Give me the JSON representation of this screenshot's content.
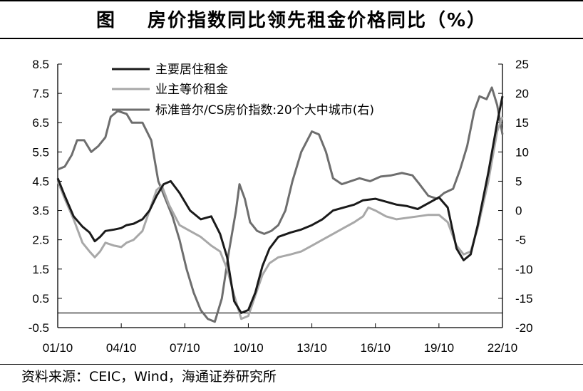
{
  "title": {
    "label": "图",
    "text": "房价指数同比领先租金价格同比（%）"
  },
  "source": "资料来源：CEIC，Wind，海通证券研究所",
  "chart_data": {
    "type": "line",
    "x_ticks": [
      "01/10",
      "04/10",
      "07/10",
      "10/10",
      "13/10",
      "16/10",
      "19/10",
      "22/10"
    ],
    "y_left": {
      "ticks": [
        "8.5",
        "7.5",
        "6.5",
        "5.5",
        "4.5",
        "3.5",
        "2.5",
        "1.5",
        "0.5",
        "-0.5"
      ],
      "range": [
        -0.5,
        8.5
      ]
    },
    "y_right": {
      "ticks": [
        "25",
        "20",
        "15",
        "10",
        "5",
        "0",
        "-5",
        "-10",
        "-15",
        "-20"
      ],
      "range": [
        -20,
        25
      ]
    },
    "legend_position": "top-center",
    "series": [
      {
        "name": "主要居住租金",
        "axis": "left",
        "color": "#1a1a1a",
        "points": [
          [
            "2001-10",
            4.6
          ],
          [
            "2002-02",
            4.0
          ],
          [
            "2002-07",
            3.3
          ],
          [
            "2002-12",
            2.95
          ],
          [
            "2003-04",
            2.75
          ],
          [
            "2003-07",
            2.45
          ],
          [
            "2003-10",
            2.6
          ],
          [
            "2004-01",
            2.8
          ],
          [
            "2004-06",
            2.85
          ],
          [
            "2004-10",
            2.9
          ],
          [
            "2005-01",
            3.0
          ],
          [
            "2005-05",
            3.05
          ],
          [
            "2005-10",
            3.2
          ],
          [
            "2006-02",
            3.5
          ],
          [
            "2006-06",
            4.0
          ],
          [
            "2006-10",
            4.4
          ],
          [
            "2007-02",
            4.5
          ],
          [
            "2007-07",
            4.1
          ],
          [
            "2008-01",
            3.5
          ],
          [
            "2008-07",
            3.2
          ],
          [
            "2009-01",
            3.3
          ],
          [
            "2009-06",
            2.7
          ],
          [
            "2009-10",
            1.9
          ],
          [
            "2010-02",
            0.4
          ],
          [
            "2010-06",
            0.0
          ],
          [
            "2010-10",
            0.1
          ],
          [
            "2011-02",
            0.7
          ],
          [
            "2011-06",
            1.6
          ],
          [
            "2011-10",
            2.2
          ],
          [
            "2012-03",
            2.6
          ],
          [
            "2012-10",
            2.75
          ],
          [
            "2013-04",
            2.85
          ],
          [
            "2013-10",
            3.0
          ],
          [
            "2014-04",
            3.2
          ],
          [
            "2014-10",
            3.5
          ],
          [
            "2015-04",
            3.6
          ],
          [
            "2015-10",
            3.7
          ],
          [
            "2016-03",
            3.85
          ],
          [
            "2016-10",
            3.9
          ],
          [
            "2017-04",
            3.8
          ],
          [
            "2017-10",
            3.7
          ],
          [
            "2018-04",
            3.65
          ],
          [
            "2018-10",
            3.55
          ],
          [
            "2019-04",
            3.75
          ],
          [
            "2019-10",
            3.95
          ],
          [
            "2020-03",
            3.6
          ],
          [
            "2020-08",
            2.2
          ],
          [
            "2020-12",
            1.8
          ],
          [
            "2021-04",
            2.0
          ],
          [
            "2021-08",
            3.0
          ],
          [
            "2022-02",
            4.8
          ],
          [
            "2022-07",
            6.5
          ],
          [
            "2022-10",
            7.4
          ]
        ]
      },
      {
        "name": "业主等价租金",
        "axis": "left",
        "color": "#a8a8a8",
        "points": [
          [
            "2001-10",
            4.5
          ],
          [
            "2002-02",
            3.9
          ],
          [
            "2002-07",
            3.2
          ],
          [
            "2002-12",
            2.4
          ],
          [
            "2003-04",
            2.1
          ],
          [
            "2003-07",
            1.9
          ],
          [
            "2003-10",
            2.1
          ],
          [
            "2004-01",
            2.4
          ],
          [
            "2004-06",
            2.3
          ],
          [
            "2004-10",
            2.25
          ],
          [
            "2005-01",
            2.4
          ],
          [
            "2005-05",
            2.5
          ],
          [
            "2005-10",
            2.8
          ],
          [
            "2006-02",
            3.5
          ],
          [
            "2006-06",
            4.2
          ],
          [
            "2006-09",
            4.35
          ],
          [
            "2007-01",
            3.7
          ],
          [
            "2007-07",
            3.0
          ],
          [
            "2008-01",
            2.8
          ],
          [
            "2008-07",
            2.6
          ],
          [
            "2009-01",
            2.3
          ],
          [
            "2009-06",
            2.1
          ],
          [
            "2009-10",
            1.5
          ],
          [
            "2010-02",
            0.6
          ],
          [
            "2010-06",
            -0.2
          ],
          [
            "2010-10",
            -0.1
          ],
          [
            "2011-02",
            0.6
          ],
          [
            "2011-06",
            1.3
          ],
          [
            "2011-10",
            1.7
          ],
          [
            "2012-03",
            1.9
          ],
          [
            "2012-10",
            2.0
          ],
          [
            "2013-04",
            2.1
          ],
          [
            "2013-10",
            2.3
          ],
          [
            "2014-04",
            2.5
          ],
          [
            "2014-10",
            2.7
          ],
          [
            "2015-04",
            2.9
          ],
          [
            "2015-10",
            3.1
          ],
          [
            "2016-03",
            3.3
          ],
          [
            "2016-06",
            3.6
          ],
          [
            "2016-10",
            3.5
          ],
          [
            "2017-04",
            3.3
          ],
          [
            "2017-10",
            3.2
          ],
          [
            "2018-04",
            3.25
          ],
          [
            "2018-10",
            3.3
          ],
          [
            "2019-04",
            3.35
          ],
          [
            "2019-10",
            3.35
          ],
          [
            "2020-03",
            3.1
          ],
          [
            "2020-08",
            2.3
          ],
          [
            "2020-12",
            2.0
          ],
          [
            "2021-04",
            2.1
          ],
          [
            "2021-08",
            2.9
          ],
          [
            "2022-02",
            4.5
          ],
          [
            "2022-07",
            6.2
          ],
          [
            "2022-10",
            6.7
          ]
        ]
      },
      {
        "name": "标准普尔/CS房价指数:20个大中城市(右)",
        "axis": "right",
        "color": "#6e6e6e",
        "points": [
          [
            "2001-10",
            7.0
          ],
          [
            "2002-02",
            7.5
          ],
          [
            "2002-06",
            9.5
          ],
          [
            "2002-09",
            12.0
          ],
          [
            "2003-01",
            12.0
          ],
          [
            "2003-05",
            10.0
          ],
          [
            "2003-09",
            11.0
          ],
          [
            "2004-01",
            12.5
          ],
          [
            "2004-04",
            16.0
          ],
          [
            "2004-08",
            17.0
          ],
          [
            "2005-01",
            16.5
          ],
          [
            "2005-04",
            15.0
          ],
          [
            "2005-10",
            15.0
          ],
          [
            "2006-03",
            12.0
          ],
          [
            "2006-07",
            5.0
          ],
          [
            "2006-11",
            2.0
          ],
          [
            "2007-03",
            -1.0
          ],
          [
            "2007-07",
            -5.0
          ],
          [
            "2007-11",
            -10.0
          ],
          [
            "2008-03",
            -14.0
          ],
          [
            "2008-07",
            -17.0
          ],
          [
            "2008-11",
            -18.5
          ],
          [
            "2009-03",
            -19.0
          ],
          [
            "2009-07",
            -15.0
          ],
          [
            "2009-11",
            -7.0
          ],
          [
            "2010-03",
            0.0
          ],
          [
            "2010-05",
            4.5
          ],
          [
            "2010-08",
            2.0
          ],
          [
            "2010-11",
            -2.0
          ],
          [
            "2011-03",
            -3.5
          ],
          [
            "2011-07",
            -4.0
          ],
          [
            "2011-11",
            -3.5
          ],
          [
            "2012-03",
            -2.5
          ],
          [
            "2012-07",
            0.0
          ],
          [
            "2012-11",
            5.0
          ],
          [
            "2013-04",
            10.0
          ],
          [
            "2013-10",
            13.5
          ],
          [
            "2014-02",
            13.0
          ],
          [
            "2014-06",
            10.0
          ],
          [
            "2014-10",
            5.5
          ],
          [
            "2015-03",
            4.5
          ],
          [
            "2015-08",
            5.0
          ],
          [
            "2016-01",
            5.5
          ],
          [
            "2016-07",
            5.0
          ],
          [
            "2017-01",
            5.8
          ],
          [
            "2017-07",
            6.0
          ],
          [
            "2018-01",
            6.4
          ],
          [
            "2018-07",
            6.0
          ],
          [
            "2018-11",
            4.5
          ],
          [
            "2019-04",
            2.5
          ],
          [
            "2019-09",
            2.0
          ],
          [
            "2020-01",
            3.0
          ],
          [
            "2020-06",
            3.7
          ],
          [
            "2020-10",
            7.0
          ],
          [
            "2021-02",
            11.0
          ],
          [
            "2021-06",
            17.0
          ],
          [
            "2021-09",
            19.5
          ],
          [
            "2022-01",
            19.0
          ],
          [
            "2022-04",
            21.0
          ],
          [
            "2022-07",
            18.0
          ],
          [
            "2022-10",
            13.0
          ]
        ]
      }
    ]
  }
}
